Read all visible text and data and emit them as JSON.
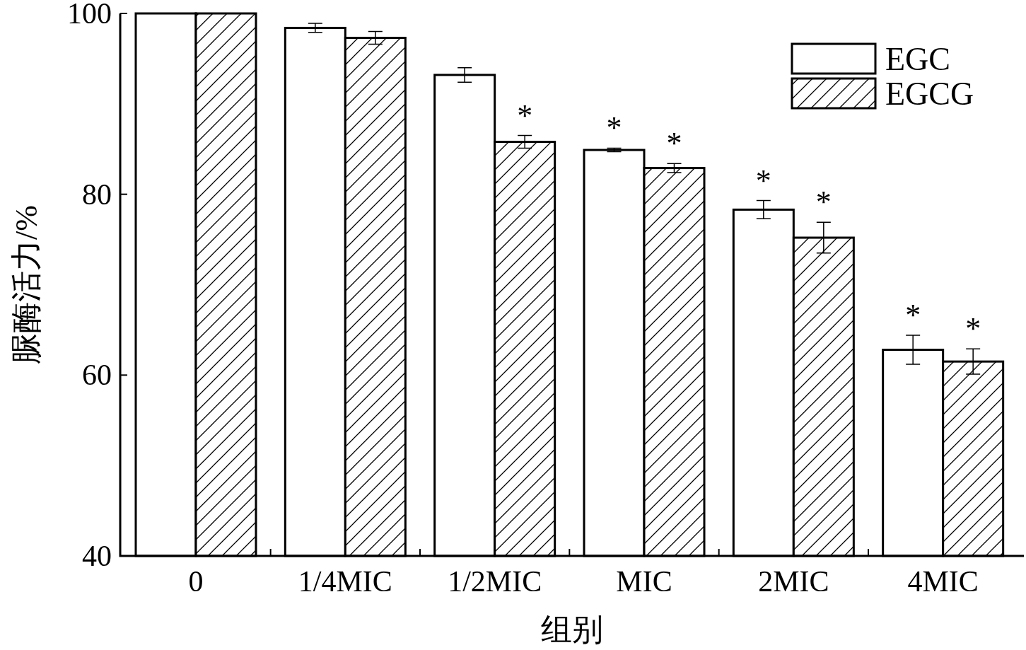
{
  "chart_data": {
    "type": "bar",
    "xlabel": "组别",
    "ylabel": "脲酶活力/%",
    "categories": [
      "0",
      "1/4MIC",
      "1/2MIC",
      "MIC",
      "2MIC",
      "4MIC"
    ],
    "series": [
      {
        "name": "EGC",
        "color": "#ffffff",
        "values": [
          100,
          98.4,
          93.2,
          84.9,
          78.3,
          62.8
        ],
        "errors": [
          null,
          0.5,
          0.8,
          0.2,
          1.0,
          1.6
        ],
        "value_labels": [
          null,
          null,
          null,
          "*",
          "*",
          "*"
        ]
      },
      {
        "name": "EGCG",
        "color": "#000000",
        "values": [
          100,
          97.3,
          85.8,
          82.9,
          75.2,
          61.5
        ],
        "errors": [
          null,
          0.7,
          0.7,
          0.5,
          1.7,
          1.4
        ],
        "value_labels": [
          null,
          null,
          "*",
          "*",
          "*",
          "*"
        ]
      }
    ],
    "ylim": [
      40,
      100
    ],
    "yticks": [
      40,
      60,
      80,
      100
    ],
    "grid": false,
    "legend": "top right"
  }
}
